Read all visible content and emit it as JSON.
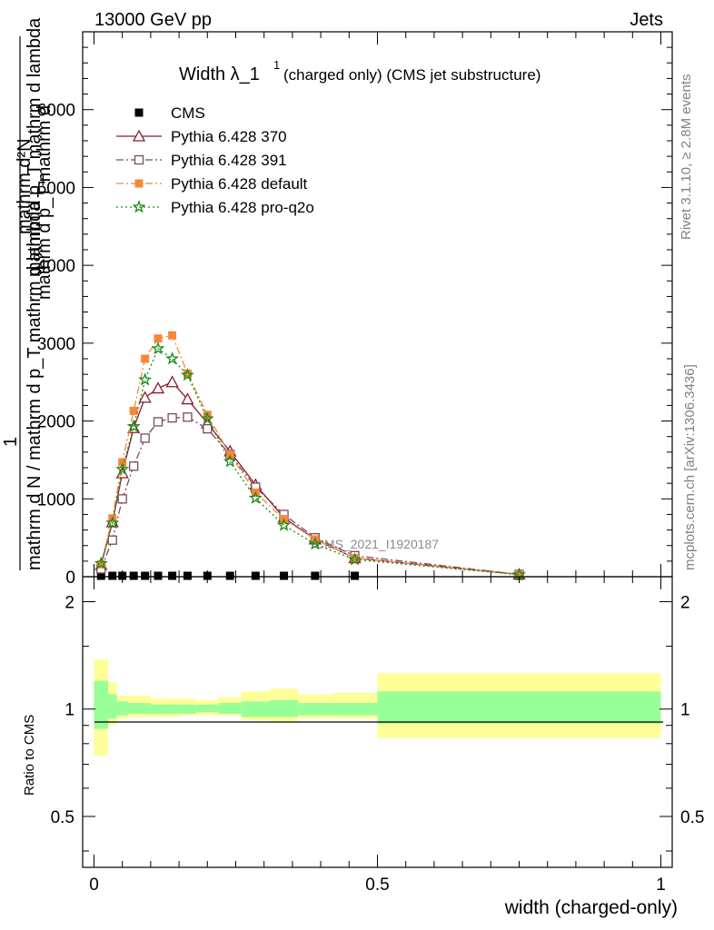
{
  "header": {
    "energy": "13000 GeV pp",
    "category": "Jets"
  },
  "side": {
    "rivet": "Rivet 3.1.10, ≥ 2.8M events",
    "mcplots": "mcplots.cern.ch [arXiv:1306.3436]"
  },
  "main_plot": {
    "title_main": "Width λ_1",
    "title_sup": "1",
    "title_sub": "(charged only) (CMS jet substructure)",
    "ylabel_top": "mathrm d²N",
    "ylabel_mid": "mathrm d p_T mathrm d lambda",
    "ylabel_one": "1",
    "ylabel_bottom": "mathrm d N / mathrm d p_T mathrm d lambda",
    "ylabel_extra": "mathrm d p_T mathrm d",
    "watermark": "CMS_2021_I1920187",
    "ytick_labels": [
      "0",
      "1000",
      "2000",
      "3000",
      "4000",
      "5000",
      "6000"
    ]
  },
  "ratio_plot": {
    "ylabel": "Ratio to CMS",
    "ytick_labels": [
      "0.5",
      "1",
      "2"
    ]
  },
  "x_axis": {
    "label": "width (charged-only)",
    "tick_labels": [
      "0",
      "0.5",
      "1"
    ]
  },
  "legend": [
    {
      "label": "CMS",
      "color": "#000000",
      "marker": "square-filled"
    },
    {
      "label": "Pythia 6.428 370",
      "color": "#8b1a2e",
      "marker": "triangle-open"
    },
    {
      "label": "Pythia 6.428 391",
      "color": "#7a4a5e",
      "marker": "square-open"
    },
    {
      "label": "Pythia 6.428 default",
      "color": "#f5883a",
      "marker": "square-filled"
    },
    {
      "label": "Pythia 6.428 pro-q2o",
      "color": "#1a8c1a",
      "marker": "star"
    }
  ],
  "chart_data": [
    {
      "type": "line",
      "xlim": [
        -0.02,
        1.02
      ],
      "ylim": [
        0,
        7000
      ],
      "grid": false,
      "legend_position": "top-left",
      "x": [
        0.0125,
        0.0325,
        0.05,
        0.07,
        0.09,
        0.113,
        0.138,
        0.165,
        0.2,
        0.24,
        0.285,
        0.335,
        0.39,
        0.46,
        0.75
      ],
      "series": [
        {
          "name": "CMS",
          "color": "#000000",
          "marker": "square-filled",
          "values": [
            0,
            0,
            0,
            0,
            0,
            0,
            0,
            0,
            0,
            0,
            0,
            0,
            0,
            0,
            0
          ]
        },
        {
          "name": "Pythia 6.428 370",
          "color": "#8b1a2e",
          "marker": "triangle-open",
          "dash": "solid",
          "values": [
            150,
            700,
            1330,
            1910,
            2300,
            2420,
            2500,
            2280,
            1970,
            1610,
            1180,
            760,
            480,
            240,
            30
          ]
        },
        {
          "name": "Pythia 6.428 391",
          "color": "#7a4a5e",
          "marker": "square-open",
          "dash": "dashdot",
          "values": [
            100,
            470,
            1000,
            1420,
            1780,
            1990,
            2040,
            2050,
            1900,
            1570,
            1150,
            800,
            500,
            270,
            30
          ]
        },
        {
          "name": "Pythia 6.428 default",
          "color": "#f5883a",
          "marker": "square-filled",
          "dash": "dashdot",
          "values": [
            160,
            750,
            1470,
            2130,
            2800,
            3060,
            3100,
            2610,
            2080,
            1570,
            1080,
            740,
            480,
            240,
            30
          ]
        },
        {
          "name": "Pythia 6.428 pro-q2o",
          "color": "#1a8c1a",
          "marker": "star",
          "dash": "dotted",
          "values": [
            170,
            690,
            1380,
            1930,
            2530,
            2930,
            2800,
            2590,
            2030,
            1480,
            1010,
            660,
            420,
            220,
            25
          ]
        }
      ]
    },
    {
      "type": "area",
      "ylabel": "Ratio to CMS",
      "ylim": [
        0.36,
        2.35
      ],
      "log_scale": true,
      "bins": [
        {
          "x0": 0.0,
          "x1": 0.025,
          "inner": [
            0.88,
            1.2
          ],
          "outer": [
            0.74,
            1.38
          ]
        },
        {
          "x0": 0.025,
          "x1": 0.04,
          "inner": [
            0.94,
            1.1
          ],
          "outer": [
            0.9,
            1.19
          ]
        },
        {
          "x0": 0.04,
          "x1": 0.06,
          "inner": [
            0.96,
            1.05
          ],
          "outer": [
            0.94,
            1.09
          ]
        },
        {
          "x0": 0.06,
          "x1": 0.1,
          "inner": [
            0.97,
            1.04
          ],
          "outer": [
            0.95,
            1.09
          ]
        },
        {
          "x0": 0.1,
          "x1": 0.125,
          "inner": [
            0.97,
            1.03
          ],
          "outer": [
            0.95,
            1.07
          ]
        },
        {
          "x0": 0.125,
          "x1": 0.15,
          "inner": [
            0.97,
            1.03
          ],
          "outer": [
            0.95,
            1.07
          ]
        },
        {
          "x0": 0.15,
          "x1": 0.18,
          "inner": [
            0.97,
            1.03
          ],
          "outer": [
            0.96,
            1.07
          ]
        },
        {
          "x0": 0.18,
          "x1": 0.22,
          "inner": [
            0.98,
            1.03
          ],
          "outer": [
            0.96,
            1.06
          ]
        },
        {
          "x0": 0.22,
          "x1": 0.26,
          "inner": [
            0.97,
            1.04
          ],
          "outer": [
            0.96,
            1.08
          ]
        },
        {
          "x0": 0.26,
          "x1": 0.31,
          "inner": [
            0.95,
            1.05
          ],
          "outer": [
            0.93,
            1.12
          ]
        },
        {
          "x0": 0.31,
          "x1": 0.36,
          "inner": [
            0.95,
            1.06
          ],
          "outer": [
            0.92,
            1.14
          ]
        },
        {
          "x0": 0.36,
          "x1": 0.42,
          "inner": [
            0.96,
            1.04
          ],
          "outer": [
            0.94,
            1.1
          ]
        },
        {
          "x0": 0.42,
          "x1": 0.5,
          "inner": [
            0.96,
            1.04
          ],
          "outer": [
            0.94,
            1.11
          ]
        },
        {
          "x0": 0.5,
          "x1": 1.0,
          "inner": [
            0.91,
            1.12
          ],
          "outer": [
            0.83,
            1.26
          ]
        }
      ]
    }
  ]
}
